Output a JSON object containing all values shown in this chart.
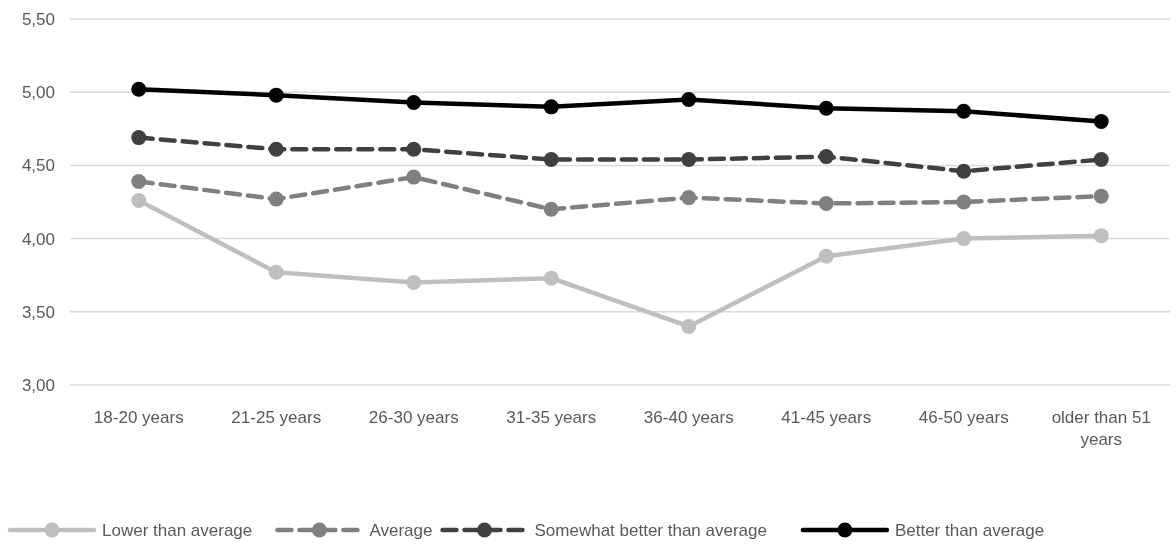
{
  "chart_data": {
    "type": "line",
    "categories": [
      "18-20 years",
      "21-25 years",
      "26-30 years",
      "31-35 years",
      "36-40 years",
      "41-45 years",
      "46-50 years",
      "older than 51 years"
    ],
    "series": [
      {
        "name": "Lower than average",
        "color": "#bfbfbf",
        "line_style": "solid",
        "values": [
          4.26,
          3.77,
          3.7,
          3.73,
          3.4,
          3.88,
          4.0,
          4.02
        ]
      },
      {
        "name": "Average",
        "color": "#808080",
        "line_style": "dashed",
        "values": [
          4.39,
          4.27,
          4.42,
          4.2,
          4.28,
          4.24,
          4.25,
          4.29
        ]
      },
      {
        "name": "Somewhat better than average",
        "color": "#404040",
        "line_style": "dashed",
        "values": [
          4.69,
          4.61,
          4.61,
          4.54,
          4.54,
          4.56,
          4.46,
          4.54
        ]
      },
      {
        "name": "Better than average",
        "color": "#000000",
        "line_style": "solid",
        "values": [
          5.02,
          4.98,
          4.93,
          4.9,
          4.95,
          4.89,
          4.87,
          4.8
        ]
      }
    ],
    "ylim": [
      3,
      5.5
    ],
    "yticks": [
      {
        "value": 3,
        "label": "3,00"
      },
      {
        "value": 3.5,
        "label": "3,50"
      },
      {
        "value": 4,
        "label": "4,00"
      },
      {
        "value": 4.5,
        "label": "4,50"
      },
      {
        "value": 5,
        "label": "5,00"
      },
      {
        "value": 5.5,
        "label": "5,50"
      }
    ],
    "grid": "y",
    "legend": "bottom",
    "marker": "circle"
  }
}
